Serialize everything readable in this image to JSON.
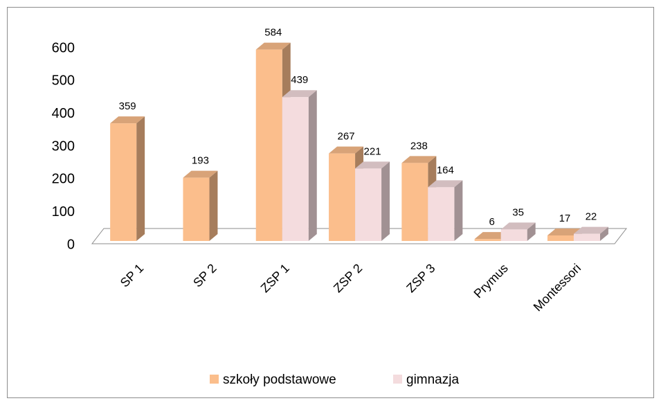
{
  "chart_data": {
    "type": "bar3d",
    "categories": [
      "SP 1",
      "SP 2",
      "ZSP 1",
      "ZSP 2",
      "ZSP 3",
      "Prymus",
      "Montessori"
    ],
    "series": [
      {
        "name": "szkoły podstawowe",
        "color": "#fbbe8c",
        "values": [
          359,
          193,
          584,
          267,
          238,
          6,
          17
        ]
      },
      {
        "name": "gimnazja",
        "color": "#f4dcde",
        "values": [
          null,
          null,
          439,
          221,
          164,
          35,
          22
        ]
      }
    ],
    "ylim": [
      0,
      600
    ],
    "yticks": [
      0,
      100,
      200,
      300,
      400,
      500,
      600
    ],
    "legend": "bottom"
  }
}
